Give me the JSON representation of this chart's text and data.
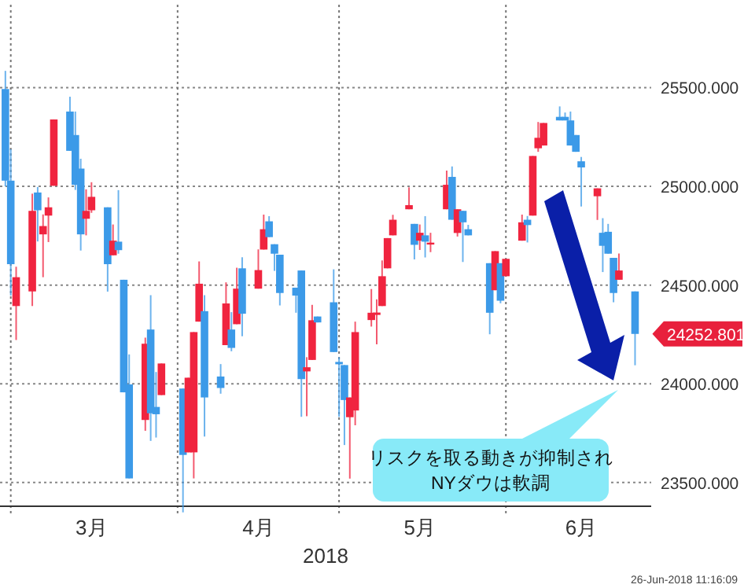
{
  "chart_data": {
    "type": "candlestick",
    "xlabel": "2018",
    "x": [
      "2018-02-28",
      "2018-03-01",
      "2018-03-02",
      "2018-03-05",
      "2018-03-06",
      "2018-03-07",
      "2018-03-08",
      "2018-03-09",
      "2018-03-12",
      "2018-03-13",
      "2018-03-14",
      "2018-03-15",
      "2018-03-16",
      "2018-03-19",
      "2018-03-20",
      "2018-03-21",
      "2018-03-22",
      "2018-03-23",
      "2018-03-26",
      "2018-03-27",
      "2018-03-28",
      "2018-03-29",
      "2018-04-02",
      "2018-04-03",
      "2018-04-04",
      "2018-04-05",
      "2018-04-06",
      "2018-04-09",
      "2018-04-10",
      "2018-04-11",
      "2018-04-12",
      "2018-04-13",
      "2018-04-16",
      "2018-04-17",
      "2018-04-18",
      "2018-04-19",
      "2018-04-20",
      "2018-04-23",
      "2018-04-24",
      "2018-04-25",
      "2018-04-26",
      "2018-04-27",
      "2018-04-30",
      "2018-05-01",
      "2018-05-02",
      "2018-05-03",
      "2018-05-04",
      "2018-05-07",
      "2018-05-08",
      "2018-05-09",
      "2018-05-10",
      "2018-05-11",
      "2018-05-14",
      "2018-05-15",
      "2018-05-16",
      "2018-05-17",
      "2018-05-18",
      "2018-05-21",
      "2018-05-22",
      "2018-05-23",
      "2018-05-24",
      "2018-05-25",
      "2018-05-29",
      "2018-05-30",
      "2018-05-31",
      "2018-06-01",
      "2018-06-04",
      "2018-06-05",
      "2018-06-06",
      "2018-06-07",
      "2018-06-08",
      "2018-06-11",
      "2018-06-12",
      "2018-06-13",
      "2018-06-14",
      "2018-06-15",
      "2018-06-18",
      "2018-06-19",
      "2018-06-20",
      "2018-06-21",
      "2018-06-22",
      "2018-06-25"
    ],
    "ohlc": [
      [
        25493,
        25585,
        25000,
        25029
      ],
      [
        25029,
        25188,
        24447,
        24606
      ],
      [
        24394,
        24593,
        24222,
        24540
      ],
      [
        24468,
        24963,
        24394,
        24876
      ],
      [
        24969,
        24997,
        24721,
        24879
      ],
      [
        24757,
        24858,
        24540,
        24799
      ],
      [
        24852,
        24944,
        24718,
        24894
      ],
      [
        25003,
        25339,
        25003,
        25339
      ],
      [
        25379,
        25454,
        25180,
        25180
      ],
      [
        25260,
        25379,
        24982,
        25008
      ],
      [
        25090,
        25140,
        24675,
        24757
      ],
      [
        24836,
        24985,
        24752,
        24876
      ],
      [
        24879,
        25021,
        24866,
        24947
      ],
      [
        24894,
        24894,
        24467,
        24606
      ],
      [
        24651,
        24807,
        24651,
        24725
      ],
      [
        24720,
        24981,
        24659,
        24677
      ],
      [
        24527,
        24527,
        23957,
        23957
      ],
      [
        23997,
        24149,
        23521,
        23521
      ],
      [
        23817,
        24234,
        23762,
        24203
      ],
      [
        24275,
        24449,
        23711,
        23851
      ],
      [
        23883,
        24060,
        23728,
        23846
      ],
      [
        23943,
        24103,
        23943,
        24103
      ],
      [
        23976,
        23976,
        23349,
        23640
      ],
      [
        23653,
        24031,
        23653,
        24031
      ],
      [
        23653,
        24262,
        23521,
        24262
      ],
      [
        24315,
        24620,
        24315,
        24507
      ],
      [
        24368,
        24449,
        23733,
        23931
      ],
      [
        24037,
        24100,
        23950,
        23979
      ],
      [
        24196,
        24514,
        24196,
        24407
      ],
      [
        24275,
        24363,
        24165,
        24182
      ],
      [
        24302,
        24588,
        24302,
        24482
      ],
      [
        24585,
        24641,
        24241,
        24355
      ],
      [
        24482,
        24681,
        24482,
        24576
      ],
      [
        24680,
        24857,
        24680,
        24783
      ],
      [
        24823,
        24849,
        24743,
        24743
      ],
      [
        24707,
        24707,
        24572,
        24659
      ],
      [
        24654,
        24654,
        24397,
        24460
      ],
      [
        24487,
        24487,
        24360,
        24447
      ],
      [
        24574,
        24574,
        23833,
        24024
      ],
      [
        24063,
        24135,
        23836,
        24084
      ],
      [
        24121,
        24400,
        24121,
        24322
      ],
      [
        24341,
        24341,
        24311,
        24311
      ],
      [
        24413,
        24580,
        24161,
        24161
      ],
      [
        24111,
        24135,
        23833,
        24099
      ],
      [
        24095,
        24095,
        23690,
        23918
      ],
      [
        23831,
        23931,
        23520,
        23931
      ],
      [
        23865,
        24315,
        23790,
        24262
      ],
      [
        24323,
        24480,
        24290,
        24360
      ],
      [
        24349,
        24428,
        24200,
        24361
      ],
      [
        24394,
        24625,
        24394,
        24545
      ],
      [
        24585,
        24738,
        24585,
        24738
      ],
      [
        24752,
        24856,
        24752,
        24831
      ],
      [
        24884,
        24995,
        24884,
        24905
      ],
      [
        24810,
        24810,
        24630,
        24704
      ],
      [
        24725,
        24807,
        24678,
        24765
      ],
      [
        24752,
        24849,
        24640,
        24720
      ],
      [
        24707,
        24765,
        24667,
        24715
      ],
      [
        24884,
        25080,
        24884,
        25008
      ],
      [
        25048,
        25101,
        24831,
        24831
      ],
      [
        24764,
        24884,
        24746,
        24884
      ],
      [
        24876,
        24876,
        24617,
        24818
      ],
      [
        24783,
        24805,
        24752,
        24752
      ],
      [
        24611,
        24611,
        24251,
        24360
      ],
      [
        24474,
        24672,
        24474,
        24672
      ],
      [
        24611,
        24611,
        24408,
        24421
      ],
      [
        24545,
        24633,
        24545,
        24633
      ],
      [
        24725,
        24857,
        24725,
        24818
      ],
      [
        24831,
        24850,
        24716,
        24804
      ],
      [
        24852,
        25154,
        24852,
        25154
      ],
      [
        25193,
        25326,
        25175,
        25246
      ],
      [
        25207,
        25321,
        25207,
        25321
      ],
      [
        25352,
        25405,
        25334,
        25334
      ],
      [
        25352,
        25374,
        25334,
        25334
      ],
      [
        25334,
        25379,
        25207,
        25207
      ],
      [
        25260,
        25260,
        25175,
        25175
      ],
      [
        25127,
        25149,
        24898,
        25096
      ],
      [
        24950,
        24990,
        24830,
        24990
      ],
      [
        24765,
        24839,
        24566,
        24699
      ],
      [
        24770,
        24810,
        24659,
        24659
      ],
      [
        24638,
        24638,
        24413,
        24460
      ],
      [
        24527,
        24660,
        24527,
        24574
      ],
      [
        24468,
        24468,
        24094,
        24252.801
      ]
    ],
    "colors": [
      "#3c9ae8",
      "#3c9ae8",
      "#f0243f",
      "#f0243f",
      "#3c9ae8",
      "#f0243f",
      "#f0243f",
      "#f0243f",
      "#3c9ae8",
      "#3c9ae8",
      "#3c9ae8",
      "#f0243f",
      "#f0243f",
      "#3c9ae8",
      "#f0243f",
      "#3c9ae8",
      "#3c9ae8",
      "#3c9ae8",
      "#f0243f",
      "#3c9ae8",
      "#3c9ae8",
      "#f0243f",
      "#3c9ae8",
      "#f0243f",
      "#f0243f",
      "#f0243f",
      "#3c9ae8",
      "#3c9ae8",
      "#f0243f",
      "#3c9ae8",
      "#f0243f",
      "#3c9ae8",
      "#f0243f",
      "#f0243f",
      "#3c9ae8",
      "#3c9ae8",
      "#3c9ae8",
      "#3c9ae8",
      "#3c9ae8",
      "#f0243f",
      "#f0243f",
      "#3c9ae8",
      "#3c9ae8",
      "#3c9ae8",
      "#3c9ae8",
      "#f0243f",
      "#f0243f",
      "#f0243f",
      "#f0243f",
      "#f0243f",
      "#f0243f",
      "#f0243f",
      "#f0243f",
      "#3c9ae8",
      "#f0243f",
      "#3c9ae8",
      "#f0243f",
      "#f0243f",
      "#3c9ae8",
      "#f0243f",
      "#3c9ae8",
      "#3c9ae8",
      "#3c9ae8",
      "#f0243f",
      "#3c9ae8",
      "#f0243f",
      "#f0243f",
      "#3c9ae8",
      "#f0243f",
      "#f0243f",
      "#f0243f",
      "#3c9ae8",
      "#3c9ae8",
      "#3c9ae8",
      "#3c9ae8",
      "#3c9ae8",
      "#f0243f",
      "#3c9ae8",
      "#3c9ae8",
      "#3c9ae8",
      "#f0243f",
      "#3c9ae8"
    ],
    "xlim": [
      "2018-02-27",
      "2018-06-28"
    ],
    "xticks": [
      {
        "value": "2018-03-16",
        "label": "3月"
      },
      {
        "value": "2018-04-16",
        "label": "4月"
      },
      {
        "value": "2018-05-16",
        "label": "5月"
      },
      {
        "value": "2018-06-15",
        "label": "6月"
      }
    ],
    "ylim": [
      23380,
      25920
    ],
    "yticks": [
      {
        "value": 23500,
        "label": "23500.000"
      },
      {
        "value": 24000,
        "label": "24000.000"
      },
      {
        "value": 24500,
        "label": "24500.000"
      },
      {
        "value": 25000,
        "label": "25000.000"
      },
      {
        "value": 25500,
        "label": "25500.000"
      }
    ],
    "grid": "y",
    "ref_lines": [
      {
        "axis": "x",
        "value": "2018-03-01",
        "line_style": "dotted"
      },
      {
        "axis": "x",
        "value": "2018-04-01",
        "line_style": "dotted"
      },
      {
        "axis": "x",
        "value": "2018-05-01",
        "line_style": "dotted"
      },
      {
        "axis": "x",
        "value": "2018-06-01",
        "line_style": "dotted"
      }
    ],
    "annotations": [
      "リスクを取る動きが抑制され\nNYダウは軟調",
      {
        "text": "24252.801",
        "x": "2018-06-25",
        "y": 24252.801
      },
      "26-Jun-2018 11:16:09"
    ]
  }
}
